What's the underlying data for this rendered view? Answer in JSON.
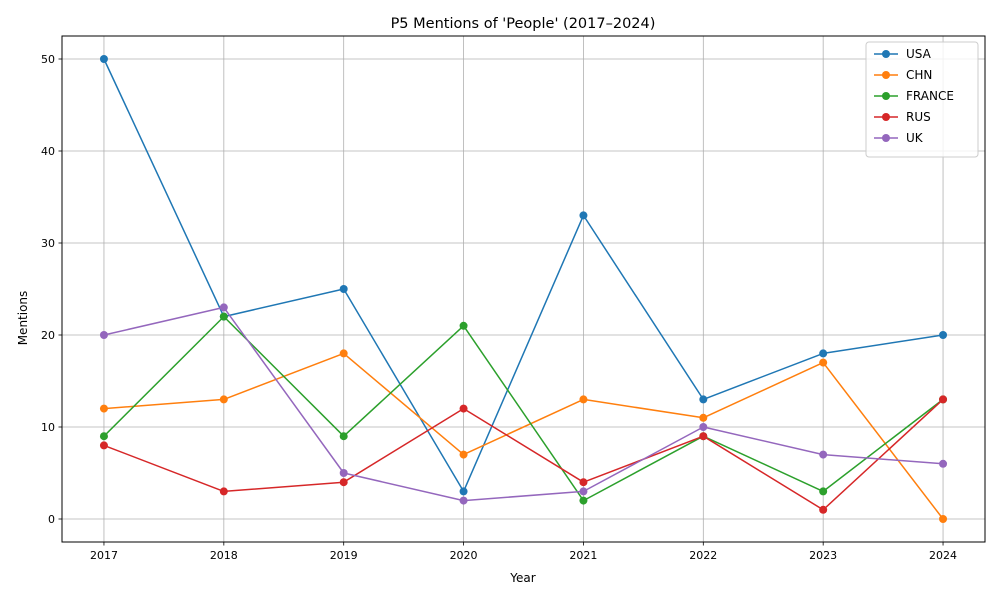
{
  "chart_data": {
    "type": "line",
    "title": "P5 Mentions of 'People' (2017–2024)",
    "xlabel": "Year",
    "ylabel": "Mentions",
    "x": [
      2017,
      2018,
      2019,
      2020,
      2021,
      2022,
      2023,
      2024
    ],
    "x_tick_labels": [
      "2017",
      "2018",
      "2019",
      "2020",
      "2021",
      "2022",
      "2023",
      "2024"
    ],
    "y_ticks": [
      0,
      10,
      20,
      30,
      40,
      50
    ],
    "xlim": [
      2016.65,
      2024.35
    ],
    "ylim": [
      -2.5,
      52.5
    ],
    "grid": true,
    "legend_position": "top-right",
    "series": [
      {
        "name": "USA",
        "color": "#1f77b4",
        "values": [
          50,
          22,
          25,
          3,
          33,
          13,
          18,
          20
        ]
      },
      {
        "name": "CHN",
        "color": "#ff7f0e",
        "values": [
          12,
          13,
          18,
          7,
          13,
          11,
          17,
          0
        ]
      },
      {
        "name": "FRANCE",
        "color": "#2ca02c",
        "values": [
          9,
          22,
          9,
          21,
          2,
          9,
          3,
          13
        ]
      },
      {
        "name": "RUS",
        "color": "#d62728",
        "values": [
          8,
          3,
          4,
          12,
          4,
          9,
          1,
          13
        ]
      },
      {
        "name": "UK",
        "color": "#9467bd",
        "values": [
          20,
          23,
          5,
          2,
          3,
          10,
          7,
          6
        ]
      }
    ]
  }
}
